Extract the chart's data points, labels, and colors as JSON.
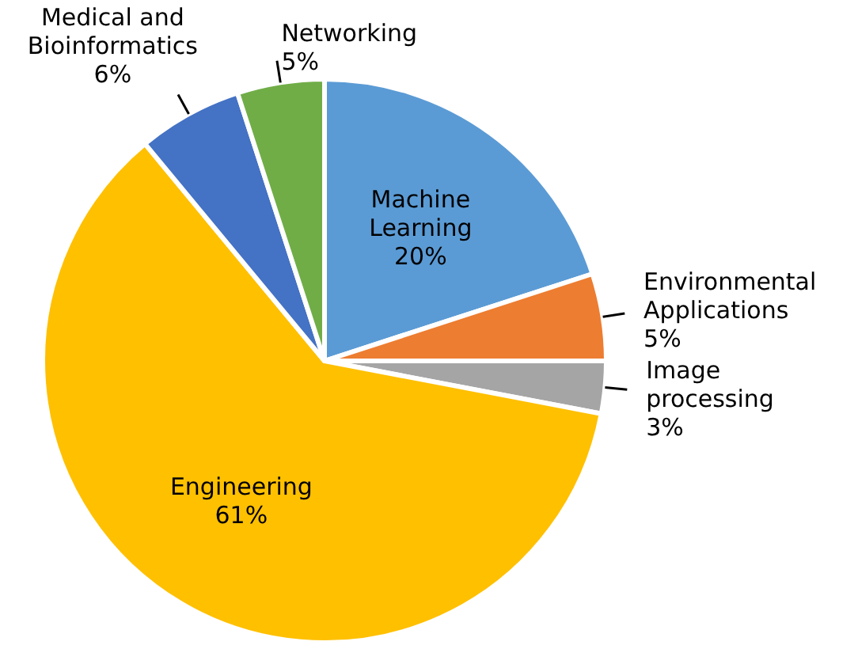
{
  "chart_data": {
    "type": "pie",
    "categories": [
      "Machine Learning",
      "Environmental Applications",
      "Image processing",
      "Engineering",
      "Medical and Bioinformatics",
      "Networking"
    ],
    "values": [
      20,
      5,
      3,
      61,
      6,
      5
    ],
    "colors": [
      "#5b9bd5",
      "#ed7d31",
      "#a5a5a5",
      "#ffc000",
      "#4472c4",
      "#70ad47"
    ],
    "value_labels": [
      "20%",
      "5%",
      "3%",
      "61%",
      "6%",
      "5%"
    ]
  }
}
